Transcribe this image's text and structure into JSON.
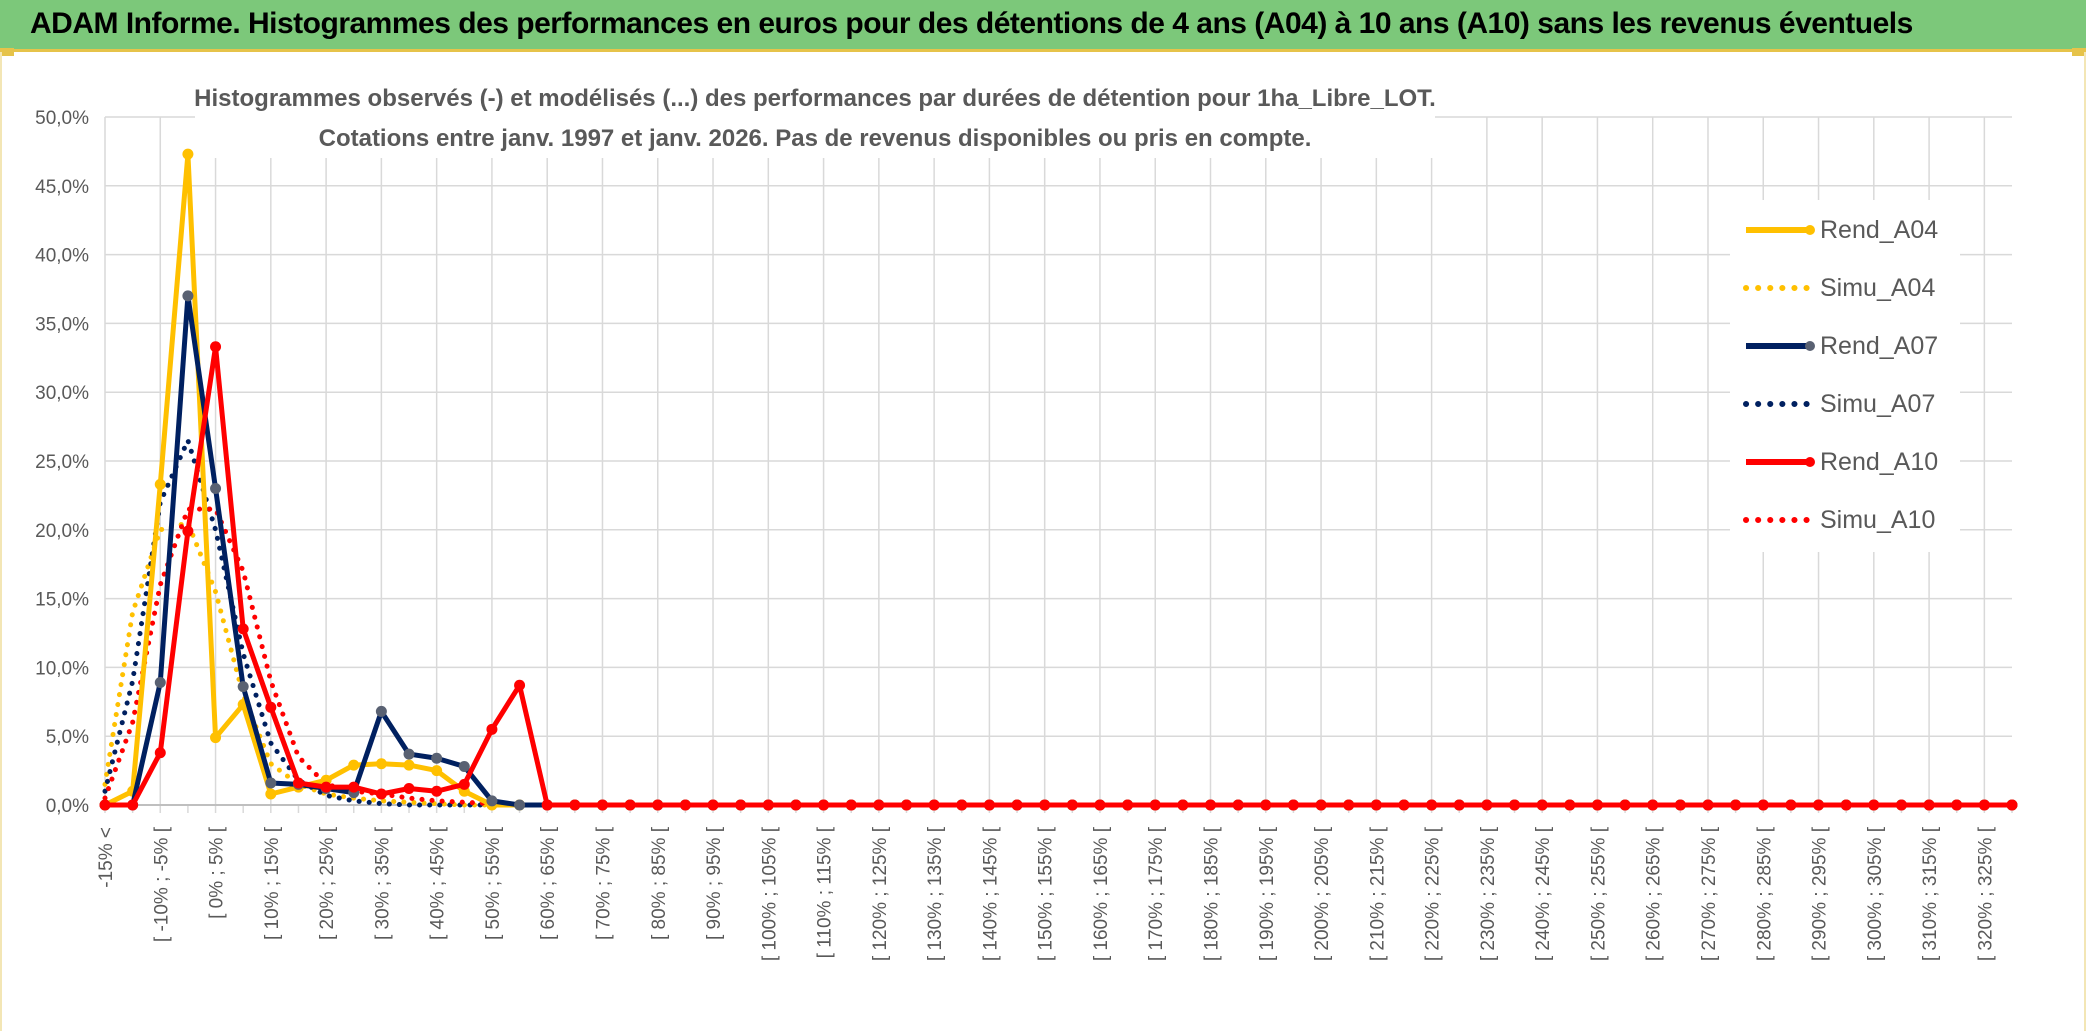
{
  "banner": {
    "title": "ADAM Informe. Histogrammes des performances en euros pour des détentions de 4 ans (A04) à 10 ans (A10) sans les revenus éventuels"
  },
  "colors": {
    "banner_bg": "#7cc87a",
    "A04": "#ffc000",
    "A07": "#002060",
    "A10": "#ff0000",
    "grid": "#d9d9d9",
    "text": "#595959"
  },
  "chart_data": {
    "type": "line",
    "title": "Histogrammes observés (-) et modélisés (...) des performances par durées de détention pour 1ha_Libre_LOT.",
    "subtitle": "Cotations entre janv. 1997 et janv. 2026. Pas de revenus disponibles ou pris en compte.",
    "xlabel": "",
    "ylabel": "",
    "ylim": [
      0,
      50
    ],
    "yticks": [
      "0,0%",
      "5,0%",
      "10,0%",
      "15,0%",
      "20,0%",
      "25,0%",
      "30,0%",
      "35,0%",
      "40,0%",
      "45,0%",
      "50,0%"
    ],
    "grid": true,
    "legend_position": "right",
    "xtick_labels": [
      "-15% <",
      "[ -10% ; -5% [",
      "[ 0% ; 5% [",
      "[ 10% ; 15% [",
      "[ 20% ; 25% [",
      "[ 30% ; 35% [",
      "[ 40% ; 45% [",
      "[ 50% ; 55% [",
      "[ 60% ; 65% [",
      "[ 70% ; 75% [",
      "[ 80% ; 85% [",
      "[ 90% ; 95% [",
      "[ 100% ; 105% [",
      "[ 110% ; 115% [",
      "[ 120% ; 125% [",
      "[ 130% ; 135% [",
      "[ 140% ; 145% [",
      "[ 150% ; 155% [",
      "[ 160% ; 165% [",
      "[ 170% ; 175% [",
      "[ 180% ; 185% [",
      "[ 190% ; 195% [",
      "[ 200% ; 205% [",
      "[ 210% ; 215% [",
      "[ 220% ; 225% [",
      "[ 230% ; 235% [",
      "[ 240% ; 245% [",
      "[ 250% ; 255% [",
      "[ 260% ; 265% [",
      "[ 270% ; 275% [",
      "[ 280% ; 285% [",
      "[ 290% ; 295% [",
      "[ 300% ; 305% [",
      "[ 310% ; 315% [",
      "[ 320% ; 325% ["
    ],
    "categories_count": 70,
    "series": [
      {
        "name": "Rend_A04",
        "style": "solid",
        "color": "#ffc000",
        "values": [
          0,
          1.0,
          23.3,
          47.3,
          4.9,
          7.3,
          0.8,
          1.3,
          1.8,
          2.9,
          3.0,
          2.9,
          2.5,
          1.0,
          0,
          0
        ]
      },
      {
        "name": "Simu_A04",
        "style": "dotted",
        "color": "#ffc000",
        "values": [
          1.5,
          14.0,
          20.0,
          20.5,
          15.5,
          8.0,
          3.0,
          1.5,
          0.8,
          0.5,
          0.3,
          0.2,
          0.1,
          0,
          0,
          0
        ]
      },
      {
        "name": "Rend_A07",
        "style": "solid",
        "color": "#002060",
        "values": [
          0,
          0,
          8.9,
          37.0,
          23.0,
          8.6,
          1.6,
          1.5,
          1.2,
          0.9,
          6.8,
          3.7,
          3.4,
          2.8,
          0.3,
          0
        ]
      },
      {
        "name": "Simu_A07",
        "style": "dotted",
        "color": "#002060",
        "values": [
          1.0,
          9.0,
          22.0,
          26.5,
          20.0,
          11.0,
          4.5,
          1.8,
          0.7,
          0.3,
          0.1,
          0,
          0,
          0,
          0,
          0
        ]
      },
      {
        "name": "Rend_A10",
        "style": "solid",
        "color": "#ff0000",
        "values": [
          0,
          0,
          3.8,
          19.9,
          33.3,
          12.8,
          7.1,
          1.6,
          1.3,
          1.3,
          0.8,
          1.2,
          1.0,
          1.5,
          5.5,
          8.7,
          0
        ]
      },
      {
        "name": "Simu_A10",
        "style": "dotted",
        "color": "#ff0000",
        "values": [
          0.5,
          6.0,
          16.0,
          21.5,
          21.5,
          17.0,
          9.0,
          3.5,
          1.5,
          1.0,
          0.8,
          0.5,
          0.3,
          0.2,
          0.1,
          0,
          0
        ]
      }
    ]
  },
  "legend": {
    "items": [
      {
        "name": "Rend_A04",
        "color": "#ffc000",
        "style": "solid"
      },
      {
        "name": "Simu_A04",
        "color": "#ffc000",
        "style": "dotted"
      },
      {
        "name": "Rend_A07",
        "color": "#002060",
        "style": "solid"
      },
      {
        "name": "Simu_A07",
        "color": "#002060",
        "style": "dotted"
      },
      {
        "name": "Rend_A10",
        "color": "#ff0000",
        "style": "solid"
      },
      {
        "name": "Simu_A10",
        "color": "#ff0000",
        "style": "dotted"
      }
    ]
  }
}
